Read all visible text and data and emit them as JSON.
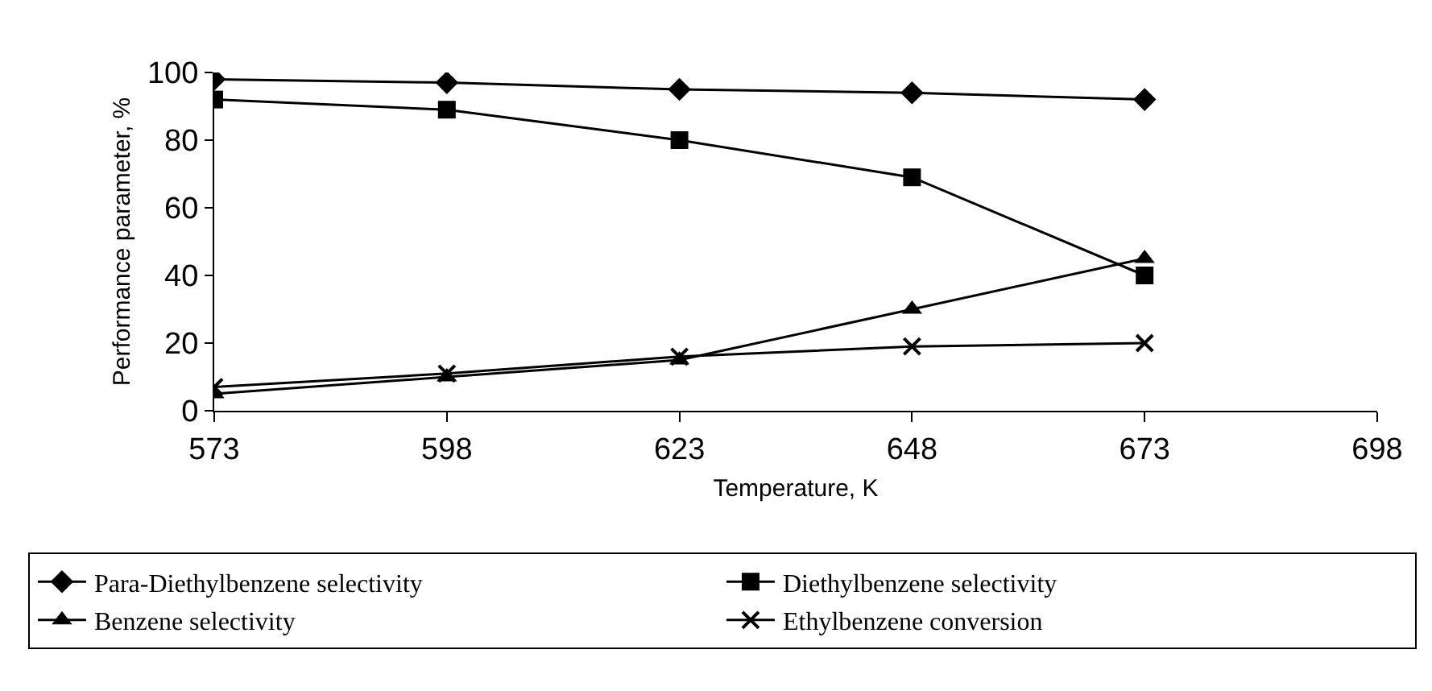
{
  "chart_data": {
    "type": "line",
    "xlabel": "Temperature, K",
    "ylabel": "Performance parameter, %",
    "x": [
      573,
      598,
      623,
      648,
      673
    ],
    "xlim": [
      573,
      698
    ],
    "xticks": [
      573,
      598,
      623,
      648,
      673,
      698
    ],
    "ylim": [
      0,
      100
    ],
    "yticks": [
      0,
      20,
      40,
      60,
      80,
      100
    ],
    "grid": false,
    "legend": "bottom",
    "line_style": "solid",
    "series": [
      {
        "name": "Para-Diethylbenzene selectivity",
        "color": "#000000",
        "marker": "diamond",
        "values": [
          98,
          97,
          95,
          94,
          92
        ]
      },
      {
        "name": "Diethylbenzene selectivity",
        "color": "#000000",
        "marker": "square",
        "values": [
          92,
          89,
          80,
          69,
          40
        ]
      },
      {
        "name": "Benzene selectivity",
        "color": "#000000",
        "marker": "triangle",
        "values": [
          5,
          10,
          15,
          30,
          45
        ]
      },
      {
        "name": "Ethylbenzene conversion",
        "color": "#000000",
        "marker": "cross",
        "values": [
          7,
          11,
          16,
          19,
          20
        ]
      }
    ]
  }
}
